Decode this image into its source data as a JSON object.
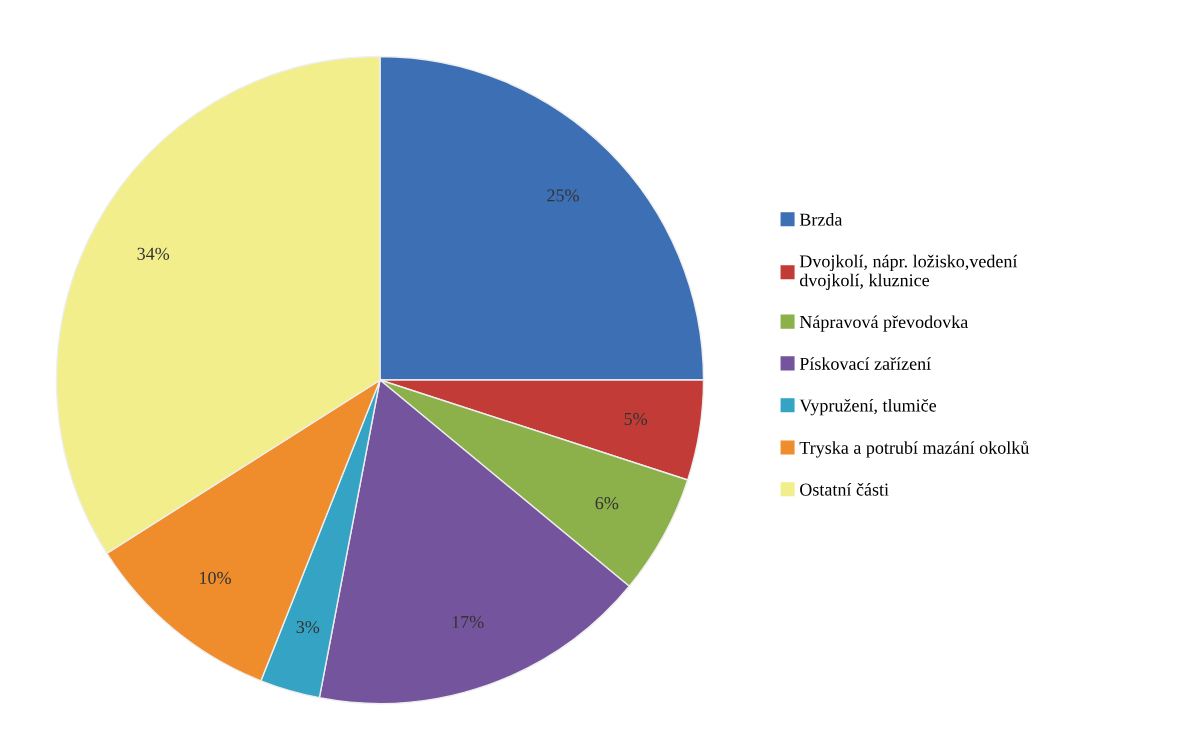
{
  "chart_data": {
    "type": "pie",
    "categories": [
      "Brzda",
      "Dvojkolí, nápr. ložisko,vedení dvojkolí, kluznice",
      "Nápravová převodovka",
      "Pískovací zařízení",
      "Vypružení, tlumiče",
      "Tryska a potrubí mazání okolků",
      "Ostatní části"
    ],
    "values": [
      25,
      5,
      6,
      17,
      3,
      10,
      34
    ],
    "value_labels": [
      "25%",
      "5%",
      "6%",
      "17%",
      "3%",
      "10%",
      "34%"
    ],
    "colors": [
      "#3d6fb5",
      "#c23b36",
      "#8cb04a",
      "#74549c",
      "#35a4c4",
      "#ef8c2c",
      "#f2ee8c"
    ],
    "legend": "right"
  }
}
